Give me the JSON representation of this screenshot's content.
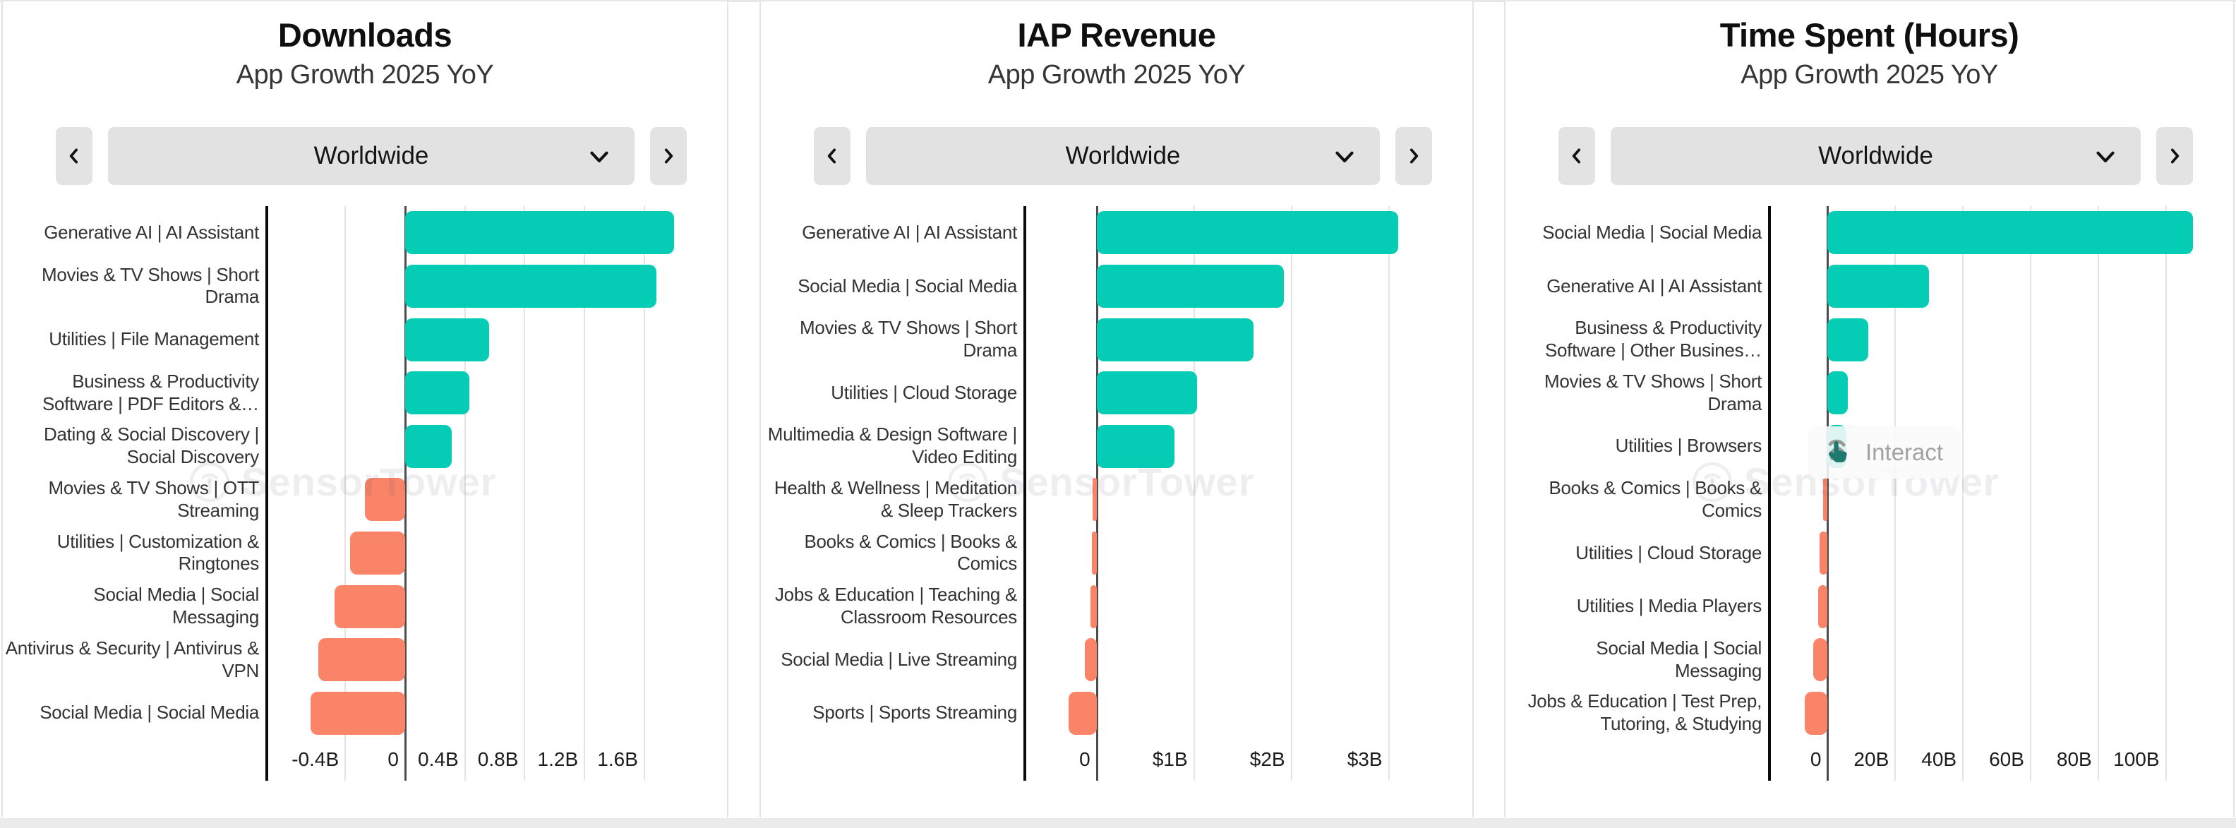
{
  "app": {
    "watermark": "SensorTower",
    "background": "#ffffff",
    "colors": {
      "positive": "#05ccb5",
      "negative": "#fa8468"
    }
  },
  "interact_overlay": {
    "label": "Interact",
    "panel_index": 2,
    "row_index": 4
  },
  "chart_data": [
    {
      "type": "bar",
      "orientation": "horizontal",
      "title": "Downloads",
      "subtitle": "App Growth 2025 YoY",
      "region_selector": {
        "value": "Worldwide"
      },
      "xlabel": "",
      "ylabel": "",
      "grid": true,
      "value_unit": "billions of downloads",
      "xlim": [
        -0.92,
        2.03
      ],
      "ticks": [
        {
          "value": -0.4,
          "label": "-0.4B"
        },
        {
          "value": 0,
          "label": "0"
        },
        {
          "value": 0.4,
          "label": "0.4B"
        },
        {
          "value": 0.8,
          "label": "0.8B"
        },
        {
          "value": 1.2,
          "label": "1.2B"
        },
        {
          "value": 1.6,
          "label": "1.6B"
        }
      ],
      "categories": [
        "Generative AI | AI Assistant",
        "Movies & TV Shows | Short Drama",
        "Utilities | File Management",
        "Business & Productivity Software | PDF Editors &…",
        "Dating & Social Discovery | Social Discovery",
        "Movies & TV Shows | OTT Streaming",
        "Utilities | Customization & Ringtones",
        "Social Media | Social Messaging",
        "Antivirus & Security | Antivirus & VPN",
        "Social Media | Social Media"
      ],
      "values": [
        1.8,
        1.68,
        0.56,
        0.43,
        0.31,
        -0.27,
        -0.37,
        -0.47,
        -0.58,
        -0.63
      ]
    },
    {
      "type": "bar",
      "orientation": "horizontal",
      "title": "IAP Revenue",
      "subtitle": "App Growth 2025 YoY",
      "region_selector": {
        "value": "Worldwide"
      },
      "xlabel": "",
      "ylabel": "",
      "grid": true,
      "value_unit": "billions of US dollars",
      "xlim": [
        -0.73,
        3.67
      ],
      "ticks": [
        {
          "value": 0,
          "label": "0"
        },
        {
          "value": 1,
          "label": "$1B"
        },
        {
          "value": 2,
          "label": "$2B"
        },
        {
          "value": 3,
          "label": "$3B"
        }
      ],
      "categories": [
        "Generative AI | AI Assistant",
        "Social Media | Social Media",
        "Movies & TV Shows | Short Drama",
        "Utilities | Cloud Storage",
        "Multimedia & Design Software | Video Editing",
        "Health & Wellness | Meditation & Sleep Trackers",
        "Books & Comics | Books & Comics",
        "Jobs & Education | Teaching & Classroom Resources",
        "Social Media | Live Streaming",
        "Sports | Sports Streaming"
      ],
      "values": [
        3.1,
        1.92,
        1.61,
        1.03,
        0.8,
        -0.04,
        -0.05,
        -0.06,
        -0.12,
        -0.29
      ]
    },
    {
      "type": "bar",
      "orientation": "horizontal",
      "title": "Time Spent (Hours)",
      "subtitle": "App Growth 2025 YoY",
      "region_selector": {
        "value": "Worldwide"
      },
      "xlabel": "",
      "ylabel": "",
      "grid": true,
      "value_unit": "billions of hours",
      "xlim": [
        -17,
        114.5
      ],
      "ticks": [
        {
          "value": 0,
          "label": "0"
        },
        {
          "value": 20,
          "label": "20B"
        },
        {
          "value": 40,
          "label": "40B"
        },
        {
          "value": 60,
          "label": "60B"
        },
        {
          "value": 80,
          "label": "80B"
        },
        {
          "value": 100,
          "label": "100B"
        }
      ],
      "categories": [
        "Social Media | Social Media",
        "Generative AI | AI Assistant",
        "Business & Productivity Software | Other Busines…",
        "Movies & TV Shows | Short Drama",
        "Utilities | Browsers",
        "Books & Comics | Books & Comics",
        "Utilities | Cloud Storage",
        "Utilities | Media Players",
        "Social Media | Social Messaging",
        "Jobs & Education | Test Prep, Tutoring, & Studying"
      ],
      "values": [
        108,
        30,
        12,
        6,
        5.5,
        -1.3,
        -2.3,
        -2.8,
        -4.2,
        -6.8
      ]
    }
  ]
}
